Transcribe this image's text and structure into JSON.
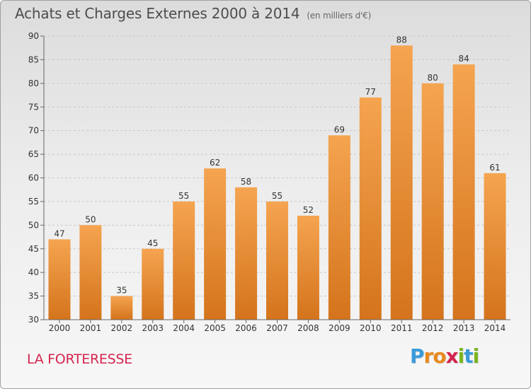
{
  "header": {
    "title": "Achats et Charges Externes 2000 à 2014",
    "subtitle": "(en milliers d'€)"
  },
  "footer": {
    "town": "LA FORTERESSE",
    "logo_letters": [
      "P",
      "r",
      "o",
      "x",
      "i",
      "t",
      "i"
    ],
    "logo_colors": [
      "#3a9ad9",
      "#e8891d",
      "#e8891d",
      "#d4254e",
      "#7ab51d",
      "#3a9ad9",
      "#7ab51d"
    ]
  },
  "colors": {
    "bar_top": "#f5a450",
    "bar_bottom": "#d4741c",
    "grid": "#c8c8c8",
    "axis_text": "#333333"
  },
  "chart_data": {
    "type": "bar",
    "categories": [
      "2000",
      "2001",
      "2002",
      "2003",
      "2004",
      "2005",
      "2006",
      "2007",
      "2008",
      "2009",
      "2010",
      "2011",
      "2012",
      "2013",
      "2014"
    ],
    "values": [
      47,
      50,
      35,
      45,
      55,
      62,
      58,
      55,
      52,
      69,
      77,
      88,
      80,
      84,
      61
    ],
    "ylim": [
      30,
      90
    ],
    "yticks": [
      30,
      35,
      40,
      45,
      50,
      55,
      60,
      65,
      70,
      75,
      80,
      85,
      90
    ],
    "grid": true,
    "data_labels": true
  }
}
